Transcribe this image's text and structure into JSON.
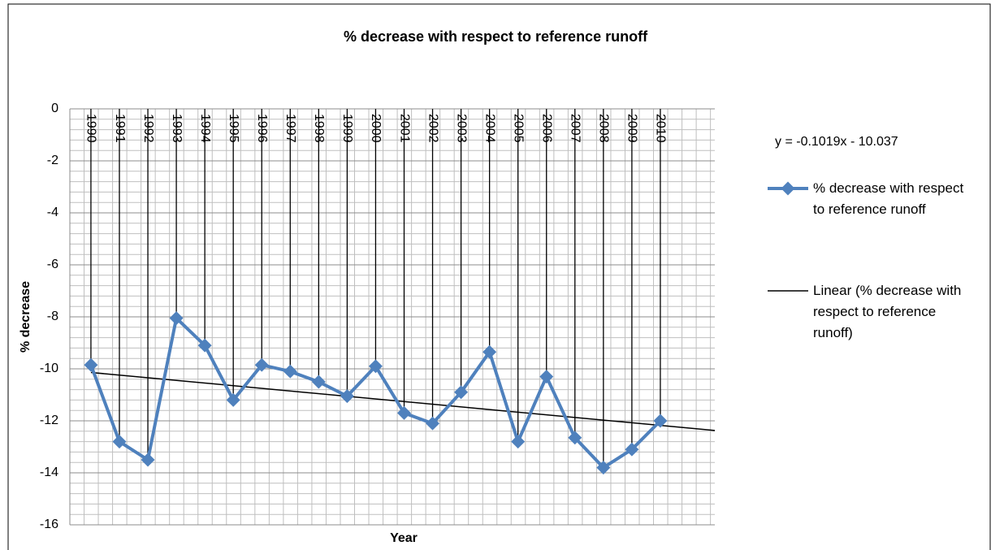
{
  "chart_data": {
    "type": "line",
    "title": "% decrease with respect to reference runoff",
    "x_label": "Year",
    "y_label": "% decrease",
    "categories": [
      "1990",
      "1991",
      "1992",
      "1993",
      "1994",
      "1995",
      "1996",
      "1997",
      "1998",
      "1999",
      "2000",
      "2001",
      "2002",
      "2003",
      "2004",
      "2005",
      "2006",
      "2007",
      "2008",
      "2009",
      "2010"
    ],
    "series": [
      {
        "name": "% decrease with respect to reference runoff",
        "color": "#4f81bd",
        "values": [
          -9.85,
          -12.8,
          -13.5,
          -8.05,
          -9.1,
          -11.2,
          -9.85,
          -10.1,
          -10.5,
          -11.05,
          -9.9,
          -11.7,
          -12.1,
          -10.9,
          -9.35,
          -12.8,
          -10.3,
          -12.65,
          -13.8,
          -13.1,
          -12.0
        ]
      }
    ],
    "trendline": {
      "name": "Linear (% decrease with respect to reference runoff)",
      "equation": "y = -0.1019x - 10.037",
      "slope": -0.1019,
      "intercept": -10.037,
      "color": "#000000"
    },
    "ylim": [
      -16,
      0
    ],
    "yticks": [
      -16,
      -14,
      -12,
      -10,
      -8,
      -6,
      -4,
      -2,
      0
    ],
    "grid": true
  }
}
